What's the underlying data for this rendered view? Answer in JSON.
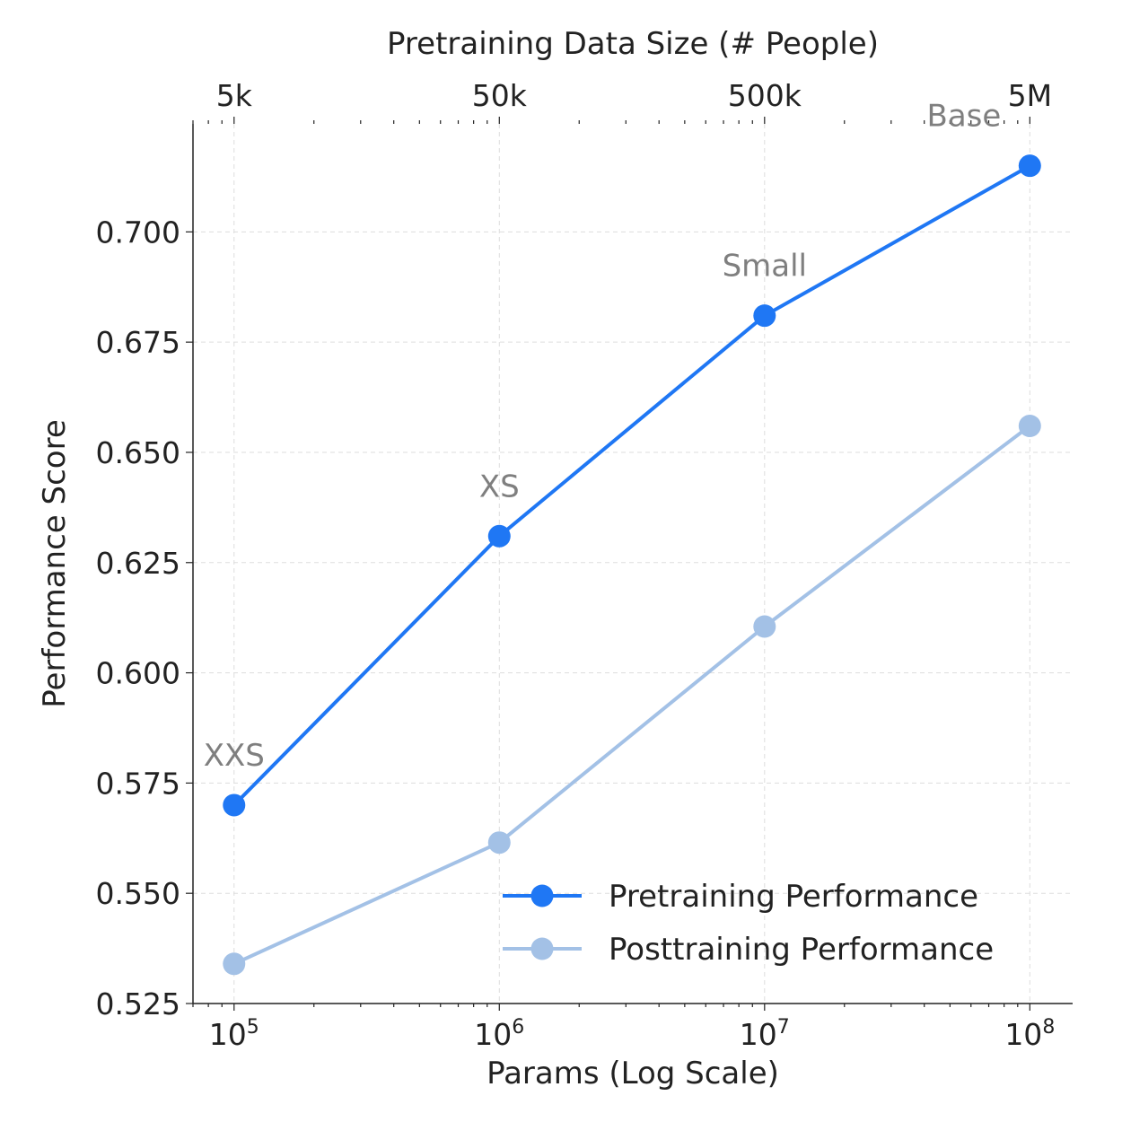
{
  "chart_data": {
    "type": "line",
    "title": "",
    "xlabel": "Params (Log Scale)",
    "ylabel": "Performance Score",
    "x_scale": "log",
    "x_major_ticks": [
      100000,
      1000000,
      10000000,
      100000000
    ],
    "x_major_tick_labels": [
      {
        "base": "10",
        "exp": "5"
      },
      {
        "base": "10",
        "exp": "6"
      },
      {
        "base": "10",
        "exp": "7"
      },
      {
        "base": "10",
        "exp": "8"
      }
    ],
    "xlim": [
      70000,
      145000000
    ],
    "ylim": [
      0.525,
      0.7245
    ],
    "y_ticks": [
      0.525,
      0.55,
      0.575,
      0.6,
      0.625,
      0.65,
      0.675,
      0.7
    ],
    "y_tick_labels": [
      "0.525",
      "0.550",
      "0.575",
      "0.600",
      "0.625",
      "0.650",
      "0.675",
      "0.700"
    ],
    "secondary_x_axis": {
      "label": "Pretraining Data Size (# People)",
      "tick_labels": [
        "5k",
        "50k",
        "500k",
        "5M"
      ],
      "tick_positions": [
        100000,
        1000000,
        10000000,
        100000000
      ]
    },
    "grid": true,
    "legend_position": "lower-right",
    "x": [
      100000,
      1000000,
      10000000,
      100000000
    ],
    "point_labels": [
      "XXS",
      "XS",
      "Small",
      "Base"
    ],
    "series": [
      {
        "name": "Pretraining Performance",
        "color": "#1f77f4",
        "values": [
          0.57,
          0.631,
          0.681,
          0.715
        ]
      },
      {
        "name": "Posttraining Performance",
        "color": "#a3c1e6",
        "values": [
          0.534,
          0.5615,
          0.6105,
          0.656
        ]
      }
    ]
  }
}
